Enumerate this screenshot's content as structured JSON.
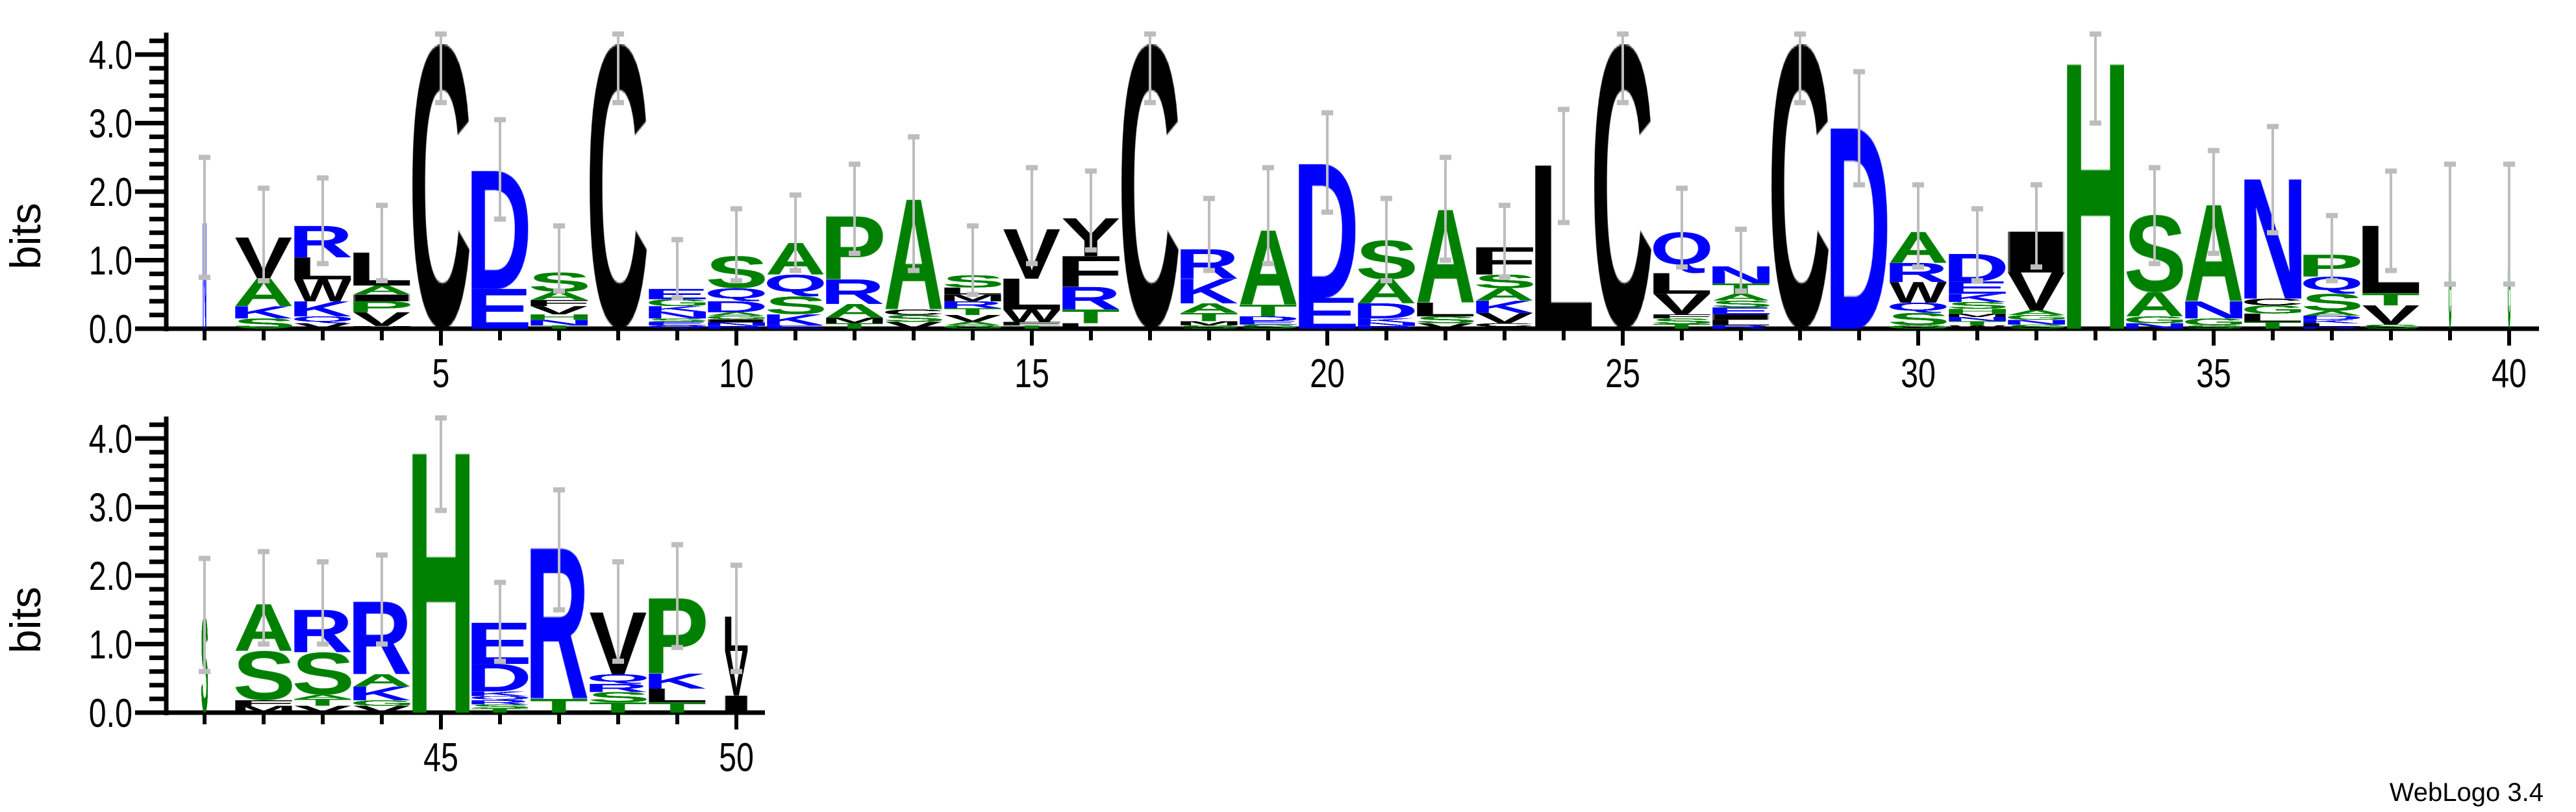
{
  "chart_data": {
    "type": "sequence-logo",
    "ylabel": "bits",
    "ylim": [
      0,
      4.32
    ],
    "y_ticks": [
      "0.0",
      "1.0",
      "2.0",
      "3.0",
      "4.0"
    ],
    "y_minor_step": 0.2,
    "x_tick_labels": [
      5,
      10,
      15,
      20,
      25,
      30,
      35,
      40,
      45,
      50
    ],
    "footer": "WebLogo 3.4",
    "colors": {
      "black": "#000000",
      "green": "#008000",
      "blue": "#0000ff",
      "errorbar": "#bdbdbd"
    },
    "color_groups": {
      "black": "CFILMVWY",
      "green": "AGHPST",
      "blue": "DEKNQR"
    },
    "rows": [
      [
        1,
        40
      ],
      [
        41,
        50
      ]
    ],
    "positions": [
      {
        "pos": 1,
        "weight": 0.06,
        "err": [
          0.75,
          2.5
        ],
        "letters": [
          [
            "N",
            1.55
          ]
        ]
      },
      {
        "pos": 2,
        "err": [
          0.7,
          2.05
        ],
        "letters": [
          [
            "S",
            0.15
          ],
          [
            "K",
            0.18
          ],
          [
            "A",
            0.4
          ],
          [
            "V",
            0.6
          ]
        ]
      },
      {
        "pos": 3,
        "err": [
          0.95,
          2.2
        ],
        "letters": [
          [
            "V",
            0.08
          ],
          [
            "Q",
            0.1
          ],
          [
            "K",
            0.22
          ],
          [
            "W",
            0.32
          ],
          [
            "L",
            0.32
          ],
          [
            "R",
            0.46
          ]
        ]
      },
      {
        "pos": 4,
        "err": [
          0.7,
          1.8
        ],
        "letters": [
          [
            "M",
            0.04
          ],
          [
            "V",
            0.2
          ],
          [
            "P",
            0.16
          ],
          [
            "I",
            0.1
          ],
          [
            "A",
            0.13
          ],
          [
            "L",
            0.48
          ]
        ]
      },
      {
        "pos": 5,
        "err": [
          3.3,
          4.3
        ],
        "letters": [
          [
            "C",
            4.15
          ]
        ]
      },
      {
        "pos": 6,
        "err": [
          1.6,
          3.05
        ],
        "letters": [
          [
            "E",
            0.58
          ],
          [
            "D",
            1.72
          ]
        ]
      },
      {
        "pos": 7,
        "err": [
          0.55,
          1.5
        ],
        "letters": [
          [
            "T",
            0.05
          ],
          [
            "N",
            0.08
          ],
          [
            "H",
            0.08
          ],
          [
            "V",
            0.12
          ],
          [
            "F",
            0.09
          ],
          [
            "A",
            0.12
          ],
          [
            "S",
            0.28
          ]
        ]
      },
      {
        "pos": 8,
        "err": [
          3.3,
          4.3
        ],
        "letters": [
          [
            "C",
            4.15
          ]
        ]
      },
      {
        "pos": 9,
        "err": [
          0.45,
          1.3
        ],
        "letters": [
          [
            "Q",
            0.05
          ],
          [
            "E",
            0.05
          ],
          [
            "S",
            0.05
          ],
          [
            "N",
            0.1
          ],
          [
            "K",
            0.08
          ],
          [
            "G",
            0.1
          ],
          [
            "E",
            0.15
          ]
        ]
      },
      {
        "pos": 10,
        "err": [
          0.7,
          1.75
        ],
        "letters": [
          [
            "R",
            0.04
          ],
          [
            "N",
            0.05
          ],
          [
            "I",
            0.05
          ],
          [
            "G",
            0.05
          ],
          [
            "A",
            0.05
          ],
          [
            "D",
            0.16
          ],
          [
            "Q",
            0.19
          ],
          [
            "S",
            0.47
          ]
        ]
      },
      {
        "pos": 11,
        "err": [
          0.85,
          1.95
        ],
        "letters": [
          [
            "E",
            0.05
          ],
          [
            "K",
            0.16
          ],
          [
            "S",
            0.26
          ],
          [
            "Q",
            0.32
          ],
          [
            "A",
            0.46
          ]
        ]
      },
      {
        "pos": 12,
        "err": [
          1.1,
          2.4
        ],
        "letters": [
          [
            "T",
            0.08
          ],
          [
            "M",
            0.08
          ],
          [
            "A",
            0.2
          ],
          [
            "R",
            0.36
          ],
          [
            "P",
            0.92
          ]
        ]
      },
      {
        "pos": 13,
        "err": [
          0.85,
          2.8
        ],
        "letters": [
          [
            "V",
            0.1
          ],
          [
            "S",
            0.1
          ],
          [
            "C",
            0.08
          ],
          [
            "A",
            1.6
          ]
        ]
      },
      {
        "pos": 14,
        "err": [
          0.5,
          1.5
        ],
        "letters": [
          [
            "G",
            0.05
          ],
          [
            "A",
            0.05
          ],
          [
            "V",
            0.1
          ],
          [
            "T",
            0.1
          ],
          [
            "R",
            0.1
          ],
          [
            "M",
            0.1
          ],
          [
            "L",
            0.1
          ],
          [
            "S",
            0.18
          ]
        ]
      },
      {
        "pos": 15,
        "err": [
          0.95,
          2.35
        ],
        "letters": [
          [
            "T",
            0.05
          ],
          [
            "F",
            0.05
          ],
          [
            "W",
            0.18
          ],
          [
            "L",
            0.45
          ],
          [
            "V",
            0.72
          ]
        ]
      },
      {
        "pos": 16,
        "err": [
          1.15,
          2.3
        ],
        "letters": [
          [
            "L",
            0.08
          ],
          [
            "T",
            0.2
          ],
          [
            "R",
            0.33
          ],
          [
            "F",
            0.45
          ],
          [
            "Y",
            0.55
          ]
        ]
      },
      {
        "pos": 17,
        "err": [
          3.3,
          4.3
        ],
        "letters": [
          [
            "C",
            4.15
          ]
        ]
      },
      {
        "pos": 18,
        "err": [
          0.85,
          1.9
        ],
        "letters": [
          [
            "S",
            0.05
          ],
          [
            "M",
            0.06
          ],
          [
            "T",
            0.12
          ],
          [
            "A",
            0.14
          ],
          [
            "K",
            0.36
          ],
          [
            "R",
            0.43
          ]
        ]
      },
      {
        "pos": 19,
        "err": [
          0.95,
          2.35
        ],
        "letters": [
          [
            "S",
            0.06
          ],
          [
            "E",
            0.05
          ],
          [
            "D",
            0.07
          ],
          [
            "T",
            0.17
          ],
          [
            "A",
            1.08
          ]
        ]
      },
      {
        "pos": 20,
        "err": [
          1.7,
          3.15
        ],
        "letters": [
          [
            "E",
            0.45
          ],
          [
            "D",
            1.95
          ]
        ]
      },
      {
        "pos": 21,
        "err": [
          0.7,
          1.9
        ],
        "letters": [
          [
            "R",
            0.04
          ],
          [
            "N",
            0.05
          ],
          [
            "K",
            0.06
          ],
          [
            "D",
            0.22
          ],
          [
            "A",
            0.35
          ],
          [
            "S",
            0.57
          ]
        ]
      },
      {
        "pos": 22,
        "err": [
          1.0,
          2.5
        ],
        "letters": [
          [
            "V",
            0.08
          ],
          [
            "S",
            0.1
          ],
          [
            "L",
            0.2
          ],
          [
            "A",
            1.35
          ]
        ]
      },
      {
        "pos": 23,
        "err": [
          0.75,
          1.8
        ],
        "letters": [
          [
            "Y",
            0.03
          ],
          [
            "C",
            0.05
          ],
          [
            "V",
            0.15
          ],
          [
            "K",
            0.18
          ],
          [
            "A",
            0.18
          ],
          [
            "S",
            0.2
          ],
          [
            "F",
            0.4
          ]
        ]
      },
      {
        "pos": 24,
        "err": [
          1.55,
          3.2
        ],
        "letters": [
          [
            "L",
            2.38
          ]
        ]
      },
      {
        "pos": 25,
        "err": [
          3.3,
          4.3
        ],
        "letters": [
          [
            "C",
            4.15
          ]
        ]
      },
      {
        "pos": 26,
        "err": [
          0.9,
          2.05
        ],
        "letters": [
          [
            "T",
            0.07
          ],
          [
            "S",
            0.08
          ],
          [
            "F",
            0.06
          ],
          [
            "V",
            0.3
          ],
          [
            "L",
            0.3
          ],
          [
            "Q",
            0.6
          ]
        ]
      },
      {
        "pos": 27,
        "err": [
          0.55,
          1.45
        ],
        "letters": [
          [
            "R",
            0.05
          ],
          [
            "L",
            0.08
          ],
          [
            "I",
            0.08
          ],
          [
            "E",
            0.1
          ],
          [
            "S",
            0.1
          ],
          [
            "A",
            0.1
          ],
          [
            "T",
            0.15
          ],
          [
            "N",
            0.25
          ]
        ]
      },
      {
        "pos": 28,
        "err": [
          3.3,
          4.3
        ],
        "letters": [
          [
            "C",
            4.15
          ]
        ]
      },
      {
        "pos": 29,
        "err": [
          2.1,
          3.75
        ],
        "letters": [
          [
            "D",
            2.92
          ]
        ]
      },
      {
        "pos": 30,
        "err": [
          0.9,
          2.1
        ],
        "letters": [
          [
            "G",
            0.05
          ],
          [
            "S",
            0.18
          ],
          [
            "Q",
            0.15
          ],
          [
            "W",
            0.3
          ],
          [
            "R",
            0.28
          ],
          [
            "A",
            0.45
          ]
        ]
      },
      {
        "pos": 31,
        "err": [
          0.7,
          1.75
        ],
        "letters": [
          [
            "W",
            0.05
          ],
          [
            "T",
            0.06
          ],
          [
            "N",
            0.06
          ],
          [
            "M",
            0.05
          ],
          [
            "H",
            0.07
          ],
          [
            "S",
            0.1
          ],
          [
            "K",
            0.12
          ],
          [
            "E",
            0.18
          ],
          [
            "D",
            0.4
          ]
        ]
      },
      {
        "pos": 32,
        "err": [
          0.9,
          2.1
        ],
        "letters": [
          [
            "S",
            0.06
          ],
          [
            "N",
            0.07
          ],
          [
            "G",
            0.07
          ],
          [
            "A",
            0.07
          ],
          [
            "V",
            0.55
          ],
          [
            "I",
            0.6
          ]
        ]
      },
      {
        "pos": 33,
        "err": [
          3.0,
          4.3
        ],
        "letters": [
          [
            "H",
            3.88
          ]
        ]
      },
      {
        "pos": 34,
        "err": [
          0.95,
          2.35
        ],
        "letters": [
          [
            "N",
            0.08
          ],
          [
            "G",
            0.1
          ],
          [
            "A",
            0.35
          ],
          [
            "S",
            1.13
          ]
        ]
      },
      {
        "pos": 35,
        "err": [
          1.1,
          2.6
        ],
        "letters": [
          [
            "S",
            0.05
          ],
          [
            "G",
            0.1
          ],
          [
            "N",
            0.25
          ],
          [
            "A",
            1.4
          ]
        ]
      },
      {
        "pos": 36,
        "err": [
          1.4,
          2.95
        ],
        "letters": [
          [
            "T",
            0.1
          ],
          [
            "L",
            0.12
          ],
          [
            "G",
            0.12
          ],
          [
            "C",
            0.1
          ],
          [
            "N",
            1.75
          ]
        ]
      },
      {
        "pos": 37,
        "err": [
          0.7,
          1.65
        ],
        "letters": [
          [
            "R",
            0.03
          ],
          [
            "L",
            0.05
          ],
          [
            "K",
            0.05
          ],
          [
            "D",
            0.06
          ],
          [
            "A",
            0.07
          ],
          [
            "S",
            0.25
          ],
          [
            "Q",
            0.25
          ],
          [
            "P",
            0.32
          ]
        ]
      },
      {
        "pos": 38,
        "err": [
          0.85,
          2.3
        ],
        "letters": [
          [
            "S",
            0.06
          ],
          [
            "V",
            0.28
          ],
          [
            "T",
            0.18
          ],
          [
            "L",
            0.98
          ]
        ]
      },
      {
        "pos": 39,
        "weight": 0.05,
        "err": [
          0.65,
          2.4
        ],
        "letters": [
          [
            "G",
            1.5
          ]
        ]
      },
      {
        "pos": 40,
        "weight": 0.05,
        "err": [
          0.65,
          2.4
        ],
        "letters": [
          [
            "G",
            1.5
          ]
        ]
      },
      {
        "pos": 41,
        "weight": 0.12,
        "err": [
          0.6,
          2.25
        ],
        "letters": [
          [
            "S",
            1.4
          ]
        ]
      },
      {
        "pos": 42,
        "err": [
          1.0,
          2.35
        ],
        "letters": [
          [
            "M",
            0.1
          ],
          [
            "F",
            0.08
          ],
          [
            "S",
            0.72
          ],
          [
            "A",
            0.68
          ]
        ]
      },
      {
        "pos": 43,
        "err": [
          1.0,
          2.2
        ],
        "letters": [
          [
            "V",
            0.1
          ],
          [
            "T",
            0.1
          ],
          [
            "A",
            0.06
          ],
          [
            "S",
            0.62
          ],
          [
            "R",
            0.62
          ]
        ]
      },
      {
        "pos": 44,
        "err": [
          1.0,
          2.3
        ],
        "letters": [
          [
            "V",
            0.1
          ],
          [
            "G",
            0.08
          ],
          [
            "K",
            0.2
          ],
          [
            "A",
            0.18
          ],
          [
            "R",
            1.06
          ]
        ]
      },
      {
        "pos": 45,
        "err": [
          2.95,
          4.3
        ],
        "letters": [
          [
            "H",
            3.8
          ]
        ]
      },
      {
        "pos": 46,
        "err": [
          0.75,
          1.9
        ],
        "letters": [
          [
            "T",
            0.06
          ],
          [
            "S",
            0.06
          ],
          [
            "R",
            0.06
          ],
          [
            "Q",
            0.06
          ],
          [
            "K",
            0.07
          ],
          [
            "D",
            0.4
          ],
          [
            "E",
            0.6
          ]
        ]
      },
      {
        "pos": 47,
        "err": [
          1.5,
          3.25
        ],
        "letters": [
          [
            "T",
            0.2
          ],
          [
            "R",
            2.2
          ]
        ]
      },
      {
        "pos": 48,
        "err": [
          0.75,
          2.2
        ],
        "letters": [
          [
            "T",
            0.15
          ],
          [
            "S",
            0.15
          ],
          [
            "R",
            0.12
          ],
          [
            "Q",
            0.14
          ],
          [
            "V",
            0.9
          ]
        ]
      },
      {
        "pos": 49,
        "err": [
          0.95,
          2.45
        ],
        "letters": [
          [
            "T",
            0.15
          ],
          [
            "L",
            0.2
          ],
          [
            "K",
            0.22
          ],
          [
            "P",
            1.1
          ]
        ]
      },
      {
        "pos": 50,
        "weight": 0.4,
        "err": [
          0.6,
          2.15
        ],
        "letters": [
          [
            "I",
            0.25
          ],
          [
            "V",
            0.65
          ],
          [
            "L",
            0.5
          ]
        ]
      }
    ]
  }
}
